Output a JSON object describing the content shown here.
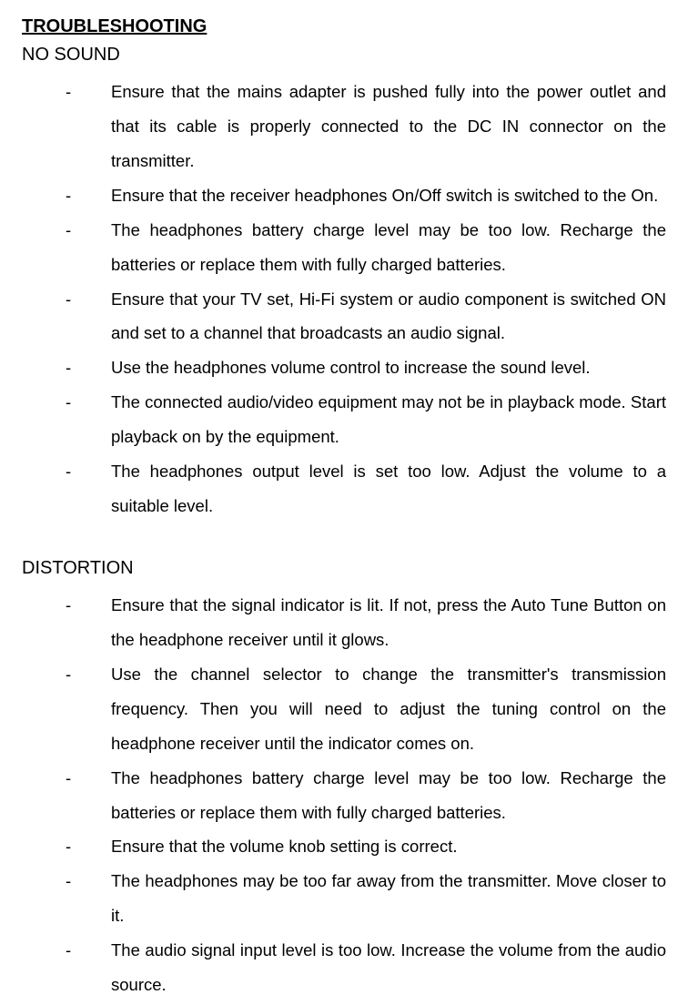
{
  "title": "TROUBLESHOOTING",
  "sections": [
    {
      "heading": "NO SOUND",
      "items": [
        "Ensure that the mains adapter is pushed fully into the power outlet and that its cable is properly connected to the DC IN connector on the transmitter.",
        "Ensure that the receiver headphones On/Off switch is switched to the On.",
        "The headphones battery charge level may be too low.   Recharge the batteries or replace them with fully charged batteries.",
        "Ensure that your TV set, Hi-Fi system or audio component is switched ON and set to a channel that broadcasts an audio signal.",
        "Use the headphones volume control to increase the sound level.",
        "The connected audio/video equipment may not be in playback mode. Start playback on by the equipment.",
        "The headphones output level is set too low.   Adjust the volume to a suitable level."
      ]
    },
    {
      "heading": "DISTORTION",
      "items": [
        "Ensure that the signal indicator is lit.   If not, press the Auto Tune Button on the headphone receiver until it glows.",
        "Use the channel selector to change the transmitter's transmission frequency. Then you will need to adjust the tuning control on the headphone receiver until the indicator comes on.",
        "The headphones battery charge level may be too low. Recharge the batteries or replace them with fully charged batteries.",
        "Ensure that the volume knob setting is correct.",
        "The headphones may be too far away from the transmitter. Move closer to it.",
        "The audio signal input level is too low. Increase the volume from the audio source."
      ]
    }
  ],
  "bullet_char": "-",
  "styles": {
    "background_color": "#ffffff",
    "text_color": "#000000",
    "title_fontsize": 20,
    "heading_fontsize": 20,
    "body_fontsize": 18.5,
    "line_height": 2.05,
    "font_family": "Arial, Helvetica, sans-serif"
  }
}
